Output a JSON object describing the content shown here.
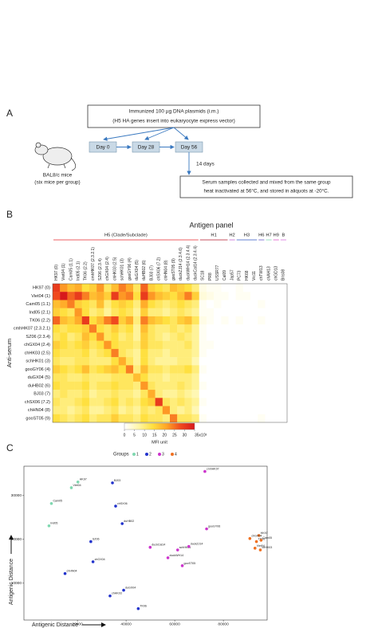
{
  "diagram": {
    "panel": "A",
    "immunization": [
      "Immunized 100 µg DNA plasmids (i.m.)",
      "(H5 HA genes insert into eukaryocyte express vector)"
    ],
    "days": [
      "Day 0",
      "Day 28",
      "Day 56"
    ],
    "mice": [
      "BAL8/c mice",
      "(six mice per group)"
    ],
    "interval": "14 days",
    "serum": [
      "Serum samples collected and mixed from the same group",
      "heat inactivated at 56°C, and stored in aliquots at -20°C."
    ]
  },
  "chart_data": [
    {
      "type": "heatmap",
      "panel": "B",
      "title": "Antigen panel",
      "ylabel": "Anti-serum",
      "column_groups": [
        {
          "name": "H5 (Clade/Subclade)",
          "color": "#e8262b",
          "columns": [
            "HK97 (0)",
            "Viet04 (1)",
            "Cam05 (1.1)",
            "Ind05 (2.1)",
            "TK06 (2.2)",
            "cmhHK07 (2.3.2.1)",
            "SZ06 (2.3.4)",
            "chGX04 (2.4)",
            "chHK03 (2.5)",
            "schHK01 (3)",
            "gooGY06 (4)",
            "duGX04 (5)",
            "duHB02 (6)",
            "BJ03 (7)",
            "chSX06 (7.2)",
            "chHN04 (8)",
            "gooST05 (9)",
            "duckZJ14 (2.3.4.6)",
            "duckWH14 (2.3.4.4)",
            "duckCal14 (2.3.4.4)"
          ]
        },
        {
          "name": "H1",
          "color": "#b0182a",
          "columns": [
            "SC18",
            "PR8",
            "USSR77",
            "Cal09"
          ]
        },
        {
          "name": "H2",
          "color": "#c765d6",
          "columns": [
            "Jap57"
          ]
        },
        {
          "name": "H3",
          "color": "#2f57c4",
          "columns": [
            "PC73",
            "HK68",
            "Vic11"
          ]
        },
        {
          "name": "H6",
          "color": "#6a5acd",
          "columns": [
            "chTW13"
          ]
        },
        {
          "name": "H7",
          "color": "#7fd8b0",
          "columns": [
            "chAH13"
          ]
        },
        {
          "name": "H9",
          "color": "#e055c8",
          "columns": [
            "chGD13"
          ]
        },
        {
          "name": "B",
          "color": "#d870e0",
          "columns": [
            "Bris08"
          ]
        }
      ],
      "rows": [
        "HK97 (0)",
        "Viet04 (1)",
        "Cam05 (1.1)",
        "Ind05 (2.1)",
        "TK06 (2.2)",
        "cmhHK07 (2.3.2.1)",
        "SZ06 (2.3.4)",
        "chGX04 (2.4)",
        "chHK03 (2.5)",
        "schHK01 (3)",
        "gooGY06 (4)",
        "duGX04 (5)",
        "duHB02 (6)",
        "BJ03 (7)",
        "chSX06 (7.2)",
        "chHN04 (8)",
        "gooST05 (9)"
      ],
      "row_color": "#e8262b",
      "values": [
        [
          30,
          22,
          18,
          20,
          14,
          16,
          22,
          12,
          18,
          24,
          20,
          12,
          26,
          16,
          14,
          12,
          18,
          16,
          14,
          10,
          2,
          1,
          1,
          0,
          0,
          1,
          0,
          0,
          0,
          0,
          0,
          0
        ],
        [
          28,
          35,
          26,
          30,
          24,
          18,
          20,
          16,
          30,
          22,
          24,
          14,
          30,
          22,
          18,
          16,
          14,
          18,
          24,
          16,
          3,
          2,
          1,
          1,
          0,
          1,
          1,
          0,
          0,
          0,
          0,
          0
        ],
        [
          18,
          20,
          24,
          16,
          14,
          12,
          18,
          10,
          14,
          16,
          14,
          10,
          20,
          14,
          12,
          10,
          12,
          14,
          12,
          10,
          1,
          0,
          1,
          0,
          0,
          0,
          0,
          0,
          1,
          0,
          0,
          0
        ],
        [
          16,
          14,
          12,
          22,
          14,
          10,
          12,
          8,
          12,
          14,
          12,
          8,
          16,
          10,
          10,
          8,
          10,
          12,
          10,
          8,
          1,
          1,
          0,
          0,
          0,
          0,
          0,
          0,
          0,
          0,
          0,
          0
        ],
        [
          26,
          18,
          16,
          20,
          30,
          14,
          18,
          24,
          28,
          16,
          20,
          10,
          24,
          18,
          16,
          14,
          12,
          16,
          18,
          12,
          2,
          1,
          0,
          1,
          0,
          1,
          0,
          0,
          1,
          0,
          0,
          0
        ],
        [
          14,
          12,
          14,
          14,
          16,
          24,
          14,
          12,
          16,
          12,
          14,
          8,
          18,
          12,
          10,
          10,
          12,
          10,
          12,
          8,
          1,
          0,
          0,
          0,
          0,
          0,
          0,
          0,
          0,
          0,
          0,
          0
        ],
        [
          12,
          14,
          10,
          12,
          18,
          14,
          22,
          12,
          14,
          10,
          12,
          8,
          16,
          12,
          10,
          8,
          10,
          12,
          10,
          8,
          1,
          0,
          0,
          0,
          0,
          0,
          0,
          0,
          0,
          0,
          0,
          0
        ],
        [
          16,
          14,
          12,
          14,
          16,
          12,
          14,
          22,
          14,
          12,
          12,
          10,
          16,
          12,
          12,
          10,
          10,
          10,
          12,
          8,
          1,
          1,
          0,
          0,
          0,
          0,
          0,
          0,
          0,
          0,
          0,
          0
        ],
        [
          14,
          12,
          12,
          12,
          14,
          10,
          12,
          14,
          24,
          12,
          10,
          8,
          14,
          10,
          10,
          8,
          10,
          10,
          10,
          8,
          1,
          0,
          0,
          0,
          0,
          0,
          0,
          0,
          0,
          0,
          0,
          0
        ],
        [
          12,
          10,
          10,
          12,
          12,
          10,
          10,
          10,
          14,
          20,
          12,
          8,
          14,
          10,
          8,
          8,
          8,
          10,
          10,
          6,
          0,
          0,
          0,
          0,
          0,
          0,
          0,
          0,
          0,
          0,
          0,
          0
        ],
        [
          16,
          14,
          12,
          14,
          18,
          12,
          14,
          16,
          18,
          14,
          24,
          10,
          18,
          12,
          12,
          10,
          12,
          12,
          14,
          10,
          1,
          0,
          0,
          0,
          0,
          0,
          0,
          0,
          0,
          0,
          0,
          0
        ],
        [
          12,
          12,
          10,
          10,
          12,
          10,
          10,
          10,
          12,
          12,
          12,
          18,
          14,
          10,
          10,
          8,
          10,
          10,
          10,
          8,
          0,
          0,
          0,
          0,
          0,
          0,
          0,
          0,
          0,
          0,
          0,
          0
        ],
        [
          14,
          12,
          12,
          12,
          14,
          10,
          12,
          12,
          14,
          12,
          12,
          10,
          22,
          12,
          10,
          10,
          10,
          12,
          10,
          8,
          1,
          0,
          0,
          0,
          0,
          0,
          0,
          0,
          0,
          0,
          0,
          0
        ],
        [
          10,
          12,
          10,
          10,
          12,
          8,
          10,
          10,
          12,
          10,
          10,
          8,
          12,
          20,
          10,
          8,
          8,
          10,
          8,
          6,
          0,
          0,
          0,
          0,
          0,
          0,
          0,
          0,
          0,
          0,
          0,
          0
        ],
        [
          12,
          10,
          10,
          12,
          14,
          10,
          10,
          12,
          14,
          10,
          12,
          10,
          14,
          16,
          30,
          12,
          10,
          12,
          10,
          8,
          1,
          0,
          0,
          0,
          0,
          0,
          0,
          0,
          0,
          0,
          0,
          0
        ],
        [
          10,
          10,
          8,
          10,
          12,
          8,
          8,
          10,
          12,
          8,
          10,
          8,
          12,
          10,
          12,
          22,
          10,
          8,
          10,
          6,
          0,
          0,
          0,
          0,
          0,
          0,
          0,
          0,
          0,
          0,
          0,
          0
        ],
        [
          14,
          12,
          10,
          12,
          14,
          10,
          12,
          12,
          16,
          12,
          12,
          10,
          14,
          12,
          12,
          10,
          24,
          12,
          12,
          10,
          1,
          0,
          0,
          0,
          0,
          0,
          0,
          0,
          1,
          0,
          0,
          0
        ]
      ],
      "colorscale": [
        "#ffffff",
        "#fff6a8",
        "#ffe040",
        "#ffa526",
        "#f04a1e",
        "#d7191c"
      ],
      "colorbar": {
        "label": "MFI unit",
        "lim": [
          0,
          35
        ],
        "ticks": [
          0,
          5,
          10,
          15,
          20,
          25,
          30,
          {
            "value": 35,
            "label": "35x10³"
          }
        ]
      }
    },
    {
      "type": "scatter",
      "panel": "C",
      "legend_title": "Groups",
      "xlabel": "Antigenic Distance",
      "ylabel": "Antigenic Distance",
      "xlim": [
        -2000,
        98000
      ],
      "ylim": [
        1600,
        36700
      ],
      "xticks": [
        20000,
        40000,
        60000,
        80000
      ],
      "yticks": [
        10000,
        20000,
        30000
      ],
      "series": [
        {
          "name": "1",
          "color": "#7fd8b0",
          "x": [
            20200,
            17500,
            9300,
            8300
          ],
          "y": [
            33100,
            31800,
            28200,
            23100
          ],
          "labels": [
            "HK97",
            "Viet04",
            "Cam05",
            "Ind05"
          ]
        },
        {
          "name": "2",
          "color": "#2233cc",
          "x": [
            34400,
            35700,
            38400,
            25500,
            26400,
            14900,
            33400,
            39000,
            45000
          ],
          "y": [
            32900,
            27600,
            23600,
            19500,
            14900,
            12200,
            7100,
            8400,
            4200
          ],
          "labels": [
            "BJ03",
            "chSX06",
            "duHB02",
            "SZ06",
            "chGX04",
            "chHN04",
            "chHK03",
            "duGX04",
            "TK06"
          ]
        },
        {
          "name": "3",
          "color": "#cc33cc",
          "x": [
            72400,
            73100,
            61200,
            65800,
            49900,
            57200,
            63100
          ],
          "y": [
            35500,
            22400,
            17600,
            18400,
            18200,
            15800,
            14000
          ],
          "labels": [
            "cmhHK07",
            "gooGY06",
            "schHK01",
            "duckZJ14",
            "duckCal14",
            "duckWH14",
            "gooST05"
          ]
        },
        {
          "name": "4",
          "color": "#f07020",
          "x": [
            93600,
            94600,
            93000,
            95500,
            90900,
            95200
          ],
          "y": [
            19500,
            20900,
            18000,
            19800,
            20200,
            17600
          ],
          "labels": [
            "TK06",
            "HK97",
            "Viet04",
            "Cam05",
            "chGX04",
            "chHK03"
          ]
        }
      ]
    }
  ]
}
